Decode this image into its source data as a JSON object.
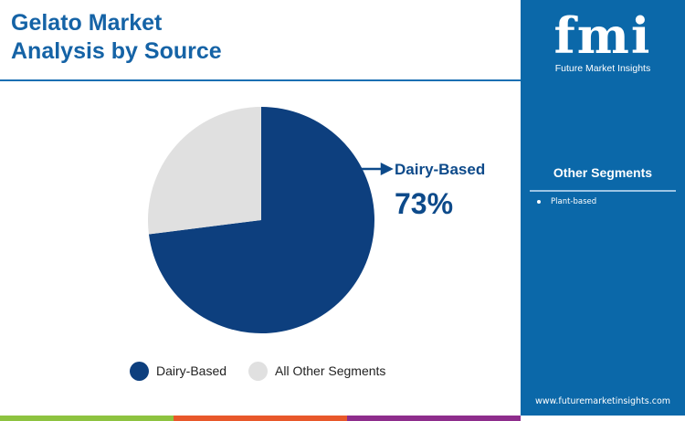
{
  "title_line1": "Gelato Market",
  "title_line2": "Analysis by Source",
  "brand": {
    "logo": "fmi",
    "name": "Future Market Insights",
    "url": "www.futuremarketinsights.com"
  },
  "side_panel": {
    "title": "Other Segments",
    "items": [
      "Plant-based"
    ]
  },
  "colors": {
    "dairy": "#0d3f7e",
    "other": "#e0e0e0",
    "panel": "#0b68a9",
    "title": "#1563a6",
    "bars": [
      "#8dc340",
      "#e8582a",
      "#8e2d8c"
    ]
  },
  "chart_data": {
    "type": "pie",
    "categories": [
      "Dairy-Based",
      "All Other Segments"
    ],
    "values": [
      73,
      27
    ],
    "legend_placement": "bottom",
    "annotation": {
      "label": "Dairy-Based",
      "value": "73%"
    }
  }
}
